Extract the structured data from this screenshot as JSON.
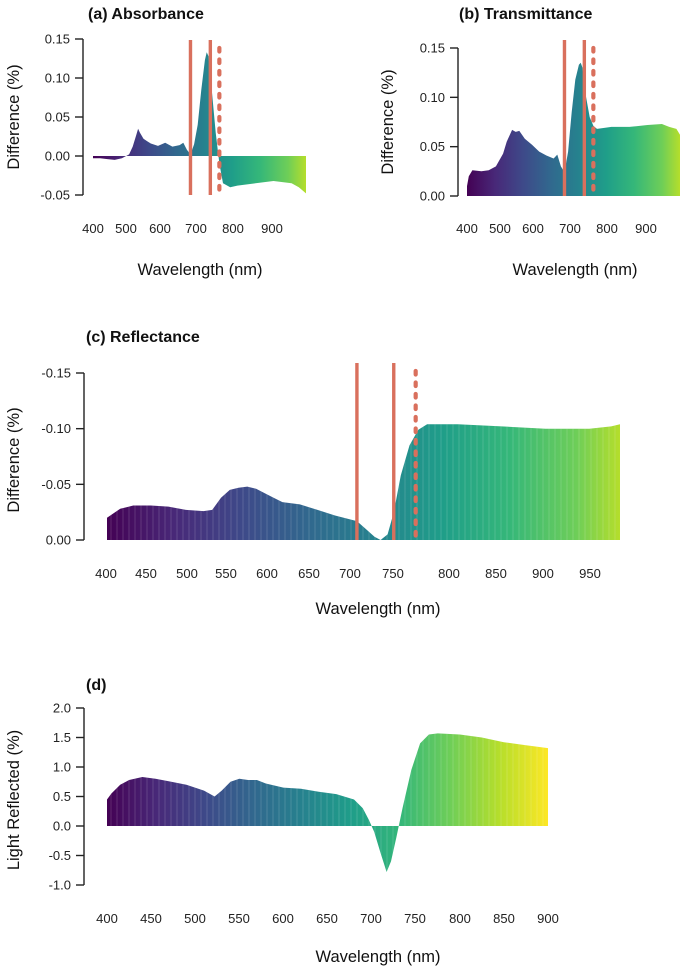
{
  "chart_data": [
    {
      "id": "a",
      "type": "area",
      "title": "(a)  Absorbance",
      "xlabel": "Wavelength (nm)",
      "ylabel": "Difference (%)",
      "xlim": [
        400,
        990
      ],
      "ylim": [
        -0.05,
        0.15
      ],
      "y_inverted": false,
      "xticks": [
        400,
        500,
        600,
        700,
        800,
        900
      ],
      "yticks": [
        {
          "value": -0.05,
          "label": "-0.05"
        },
        {
          "value": 0.0,
          "label": "0.00"
        },
        {
          "value": 0.05,
          "label": "0.05"
        },
        {
          "value": 0.1,
          "label": "0.10"
        },
        {
          "value": 0.15,
          "label": "0.15"
        }
      ],
      "fill": "viridis gradient by wavelength",
      "vlines": [
        {
          "x": 670,
          "style": "solid",
          "color": "#d9705d"
        },
        {
          "x": 725,
          "style": "solid",
          "color": "#d9705d"
        },
        {
          "x": 750,
          "style": "dotted",
          "color": "#d9705d"
        }
      ],
      "x": [
        400,
        420,
        440,
        460,
        480,
        500,
        510,
        520,
        525,
        530,
        540,
        550,
        560,
        580,
        600,
        620,
        640,
        650,
        660,
        670,
        680,
        690,
        700,
        710,
        715,
        720,
        730,
        740,
        750,
        760,
        780,
        800,
        850,
        900,
        950,
        970,
        990
      ],
      "values": [
        -0.003,
        -0.003,
        -0.004,
        -0.005,
        -0.003,
        0.002,
        0.012,
        0.027,
        0.035,
        0.03,
        0.022,
        0.019,
        0.016,
        0.013,
        0.017,
        0.012,
        0.014,
        0.017,
        0.008,
        0.002,
        0.015,
        0.04,
        0.085,
        0.123,
        0.133,
        0.128,
        0.08,
        0.03,
        -0.01,
        -0.035,
        -0.04,
        -0.038,
        -0.035,
        -0.032,
        -0.035,
        -0.04,
        -0.048
      ]
    },
    {
      "id": "b",
      "type": "area",
      "title": "(b)  Transmittance",
      "xlabel": "Wavelength (nm)",
      "ylabel": "Difference (%)",
      "xlim": [
        400,
        990
      ],
      "ylim": [
        0.0,
        0.15
      ],
      "y_inverted": false,
      "xticks": [
        400,
        500,
        600,
        700,
        800,
        900
      ],
      "yticks": [
        {
          "value": 0.0,
          "label": "0.00"
        },
        {
          "value": 0.05,
          "label": "0.05"
        },
        {
          "value": 0.1,
          "label": "0.10"
        },
        {
          "value": 0.15,
          "label": "0.15"
        }
      ],
      "fill": "viridis gradient by wavelength",
      "vlines": [
        {
          "x": 670,
          "style": "solid",
          "color": "#d9705d"
        },
        {
          "x": 725,
          "style": "solid",
          "color": "#d9705d"
        },
        {
          "x": 750,
          "style": "dotted",
          "color": "#d9705d"
        }
      ],
      "x": [
        400,
        405,
        415,
        440,
        460,
        480,
        500,
        510,
        525,
        535,
        545,
        560,
        580,
        600,
        620,
        640,
        650,
        660,
        670,
        680,
        690,
        700,
        710,
        715,
        720,
        730,
        740,
        750,
        760,
        800,
        850,
        900,
        940,
        960,
        980,
        990
      ],
      "values": [
        0.01,
        0.02,
        0.026,
        0.025,
        0.026,
        0.03,
        0.043,
        0.055,
        0.067,
        0.065,
        0.066,
        0.058,
        0.052,
        0.045,
        0.041,
        0.038,
        0.042,
        0.03,
        0.024,
        0.045,
        0.085,
        0.118,
        0.133,
        0.135,
        0.13,
        0.1,
        0.08,
        0.071,
        0.068,
        0.07,
        0.07,
        0.072,
        0.073,
        0.07,
        0.068,
        0.062
      ]
    },
    {
      "id": "c",
      "type": "area",
      "title": "(c)  Reflectance",
      "xlabel": "Wavelength (nm)",
      "ylabel": "Difference (%)",
      "xlim": [
        400,
        985
      ],
      "ylim": [
        0.0,
        -0.15
      ],
      "y_inverted": true,
      "xticks": [
        400,
        450,
        500,
        550,
        600,
        650,
        700,
        750,
        800,
        850,
        900,
        950
      ],
      "yticks": [
        {
          "value": 0.0,
          "label": "0.00"
        },
        {
          "value": -0.05,
          "label": "-0.05"
        },
        {
          "value": -0.1,
          "label": "-0.10"
        },
        {
          "value": -0.15,
          "label": "-0.15"
        }
      ],
      "fill": "viridis gradient by wavelength (striped)",
      "vlines": [
        {
          "x": 685,
          "style": "solid",
          "color": "#d9705d"
        },
        {
          "x": 727,
          "style": "solid",
          "color": "#d9705d"
        },
        {
          "x": 752,
          "style": "dotted",
          "color": "#d9705d"
        }
      ],
      "x": [
        400,
        415,
        430,
        450,
        470,
        490,
        510,
        520,
        530,
        540,
        550,
        560,
        570,
        580,
        590,
        600,
        620,
        640,
        660,
        680,
        685,
        695,
        705,
        712,
        720,
        727,
        735,
        745,
        755,
        765,
        780,
        800,
        850,
        900,
        950,
        975,
        985
      ],
      "values": [
        -0.02,
        -0.028,
        -0.031,
        -0.031,
        -0.03,
        -0.027,
        -0.026,
        -0.027,
        -0.038,
        -0.045,
        -0.047,
        -0.048,
        -0.046,
        -0.042,
        -0.038,
        -0.034,
        -0.032,
        -0.027,
        -0.022,
        -0.018,
        -0.017,
        -0.01,
        -0.003,
        0.0,
        -0.005,
        -0.025,
        -0.058,
        -0.085,
        -0.099,
        -0.104,
        -0.104,
        -0.104,
        -0.102,
        -0.1,
        -0.1,
        -0.102,
        -0.104
      ]
    },
    {
      "id": "d",
      "type": "area",
      "title": "(d)",
      "xlabel": "Wavelength (nm)",
      "ylabel": "Light Reflected (%)",
      "xlim": [
        400,
        900
      ],
      "ylim": [
        -1.0,
        2.0
      ],
      "y_inverted": false,
      "xticks": [
        400,
        450,
        500,
        550,
        600,
        650,
        700,
        750,
        800,
        850,
        900
      ],
      "yticks": [
        {
          "value": -1.0,
          "label": "-1.0"
        },
        {
          "value": -0.5,
          "label": "-0.5"
        },
        {
          "value": 0.0,
          "label": "0.0"
        },
        {
          "value": 0.5,
          "label": "0.5"
        },
        {
          "value": 1.0,
          "label": "1.0"
        },
        {
          "value": 1.5,
          "label": "1.5"
        },
        {
          "value": 2.0,
          "label": "2.0"
        }
      ],
      "fill": "viridis gradient by wavelength (striped)",
      "vlines": [],
      "x": [
        400,
        405,
        415,
        425,
        440,
        455,
        470,
        490,
        510,
        522,
        530,
        540,
        550,
        560,
        570,
        580,
        600,
        620,
        640,
        660,
        680,
        690,
        697,
        703,
        710,
        717,
        722,
        728,
        735,
        745,
        755,
        765,
        775,
        800,
        825,
        850,
        875,
        900
      ],
      "values": [
        0.45,
        0.55,
        0.7,
        0.78,
        0.83,
        0.8,
        0.76,
        0.7,
        0.6,
        0.5,
        0.6,
        0.75,
        0.8,
        0.78,
        0.78,
        0.72,
        0.65,
        0.63,
        0.58,
        0.54,
        0.45,
        0.3,
        0.1,
        -0.1,
        -0.45,
        -0.78,
        -0.6,
        -0.2,
        0.3,
        0.95,
        1.4,
        1.55,
        1.57,
        1.55,
        1.5,
        1.42,
        1.37,
        1.32
      ]
    }
  ]
}
